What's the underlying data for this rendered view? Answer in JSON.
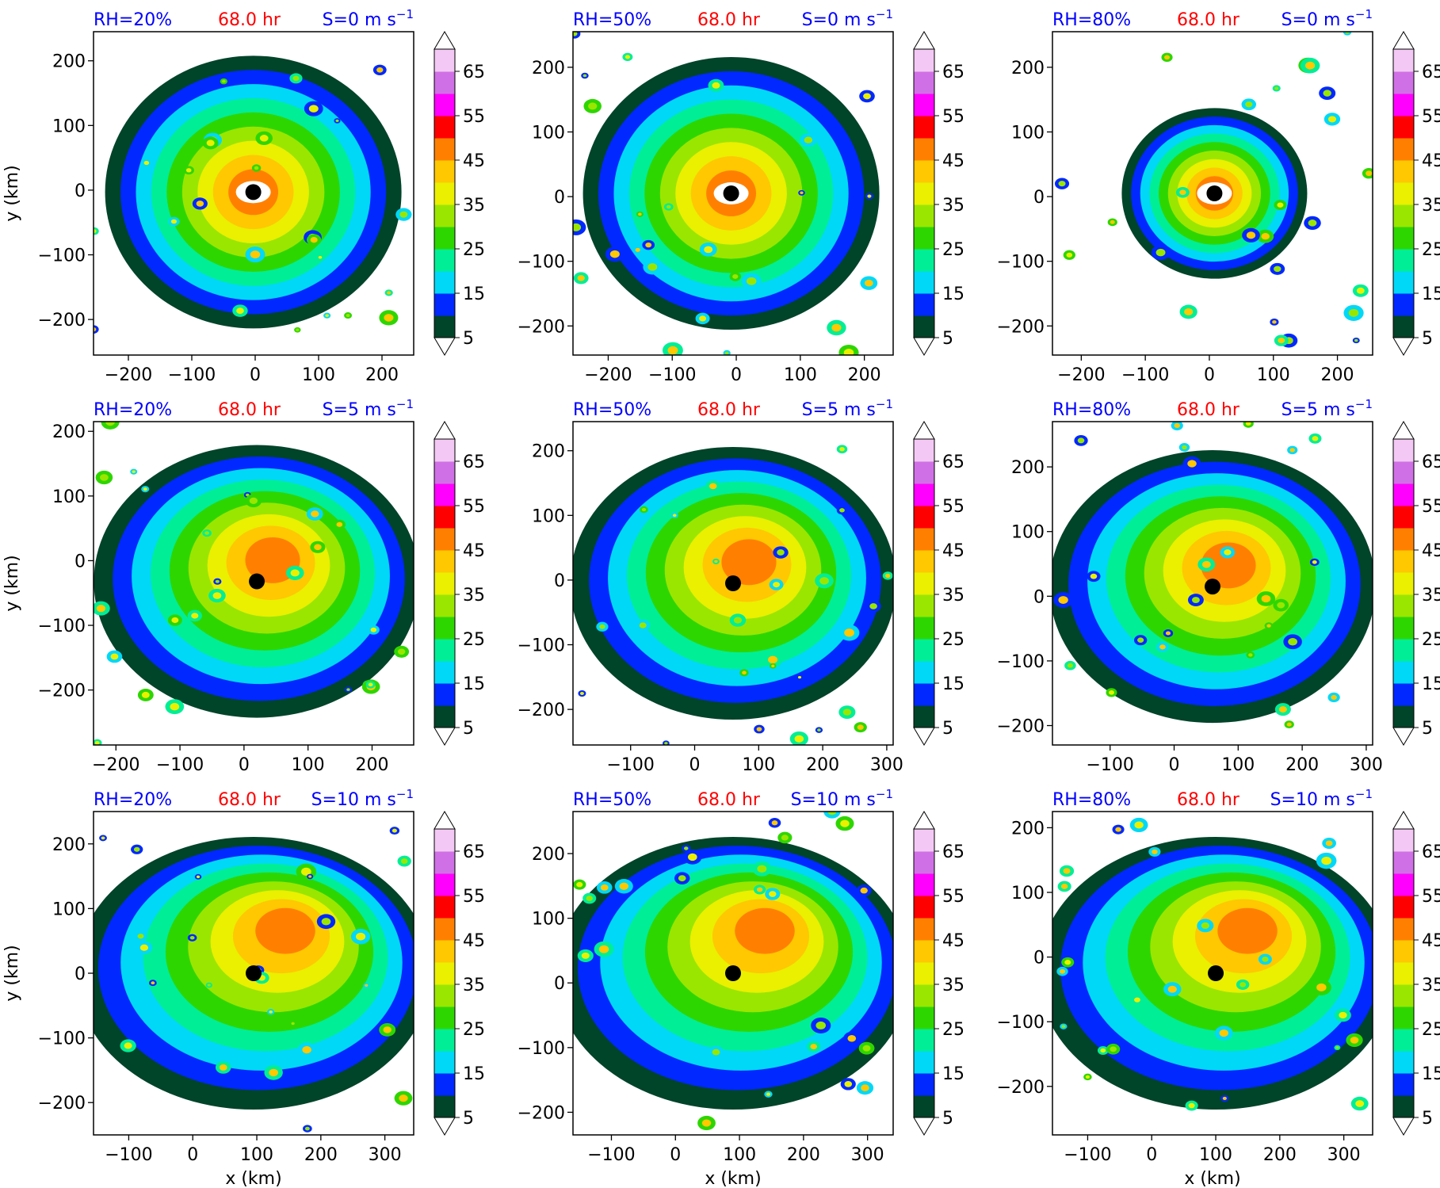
{
  "colors": {
    "rh": "#0000ff",
    "time": "#ff0000",
    "shear": "#0000ff",
    "levels": [
      "#00442a",
      "#0028ff",
      "#00d8f8",
      "#00ee96",
      "#2ed600",
      "#9ae600",
      "#eaf000",
      "#ffc800",
      "#ff8000",
      "#ff0000",
      "#ff00ff",
      "#d070e6",
      "#f4c8f4"
    ]
  },
  "colorbar_ticks": [
    "5",
    "15",
    "25",
    "35",
    "45",
    "55",
    "65"
  ],
  "chart_data": [
    {
      "type": "heatmap",
      "title_left": "RH=20%",
      "title_center": "68.0 hr",
      "shear": "0",
      "ylabel": "y (km)",
      "xlabel": "",
      "xlim": [
        -255,
        250
      ],
      "ylim": [
        -255,
        245
      ],
      "xticks": [
        -200,
        -100,
        0,
        100,
        200
      ],
      "yticks": [
        -200,
        -100,
        0,
        100,
        200
      ],
      "center": [
        -3,
        -3
      ],
      "colorbar_ticks": [
        5,
        15,
        25,
        35,
        45,
        55,
        65
      ]
    },
    {
      "type": "heatmap",
      "title_left": "RH=50%",
      "title_center": "68.0 hr",
      "shear": "0",
      "ylabel": "",
      "xlabel": "",
      "xlim": [
        -255,
        245
      ],
      "ylim": [
        -245,
        255
      ],
      "xticks": [
        -200,
        -100,
        0,
        100,
        200
      ],
      "yticks": [
        -200,
        -100,
        0,
        100,
        200
      ],
      "center": [
        -8,
        5
      ],
      "colorbar_ticks": [
        5,
        15,
        25,
        35,
        45,
        55,
        65
      ]
    },
    {
      "type": "heatmap",
      "title_left": "RH=80%",
      "title_center": "68.0 hr",
      "shear": "0",
      "ylabel": "",
      "xlabel": "",
      "xlim": [
        -245,
        255
      ],
      "ylim": [
        -245,
        255
      ],
      "xticks": [
        -200,
        -100,
        0,
        100,
        200
      ],
      "yticks": [
        -200,
        -100,
        0,
        100,
        200
      ],
      "center": [
        8,
        5
      ],
      "colorbar_ticks": [
        5,
        15,
        25,
        35,
        45,
        55,
        65
      ]
    },
    {
      "type": "heatmap",
      "title_left": "RH=20%",
      "title_center": "68.0 hr",
      "shear": "5",
      "ylabel": "y (km)",
      "xlabel": "",
      "xlim": [
        -235,
        265
      ],
      "ylim": [
        -285,
        215
      ],
      "xticks": [
        -200,
        -100,
        0,
        100,
        200
      ],
      "yticks": [
        -200,
        -100,
        0,
        100,
        200
      ],
      "center": [
        20,
        -32
      ],
      "colorbar_ticks": [
        5,
        15,
        25,
        35,
        45,
        55,
        65
      ]
    },
    {
      "type": "heatmap",
      "title_left": "RH=50%",
      "title_center": "68.0 hr",
      "shear": "5",
      "ylabel": "",
      "xlabel": "",
      "xlim": [
        -190,
        310
      ],
      "ylim": [
        -255,
        245
      ],
      "xticks": [
        -100,
        0,
        100,
        200,
        300
      ],
      "yticks": [
        -200,
        -100,
        0,
        100,
        200
      ],
      "center": [
        60,
        -5
      ],
      "colorbar_ticks": [
        5,
        15,
        25,
        35,
        45,
        55,
        65
      ]
    },
    {
      "type": "heatmap",
      "title_left": "RH=80%",
      "title_center": "68.0 hr",
      "shear": "5",
      "ylabel": "",
      "xlabel": "",
      "xlim": [
        -190,
        310
      ],
      "ylim": [
        -230,
        270
      ],
      "xticks": [
        -100,
        0,
        100,
        200,
        300
      ],
      "yticks": [
        -200,
        -100,
        0,
        100,
        200
      ],
      "center": [
        60,
        15
      ],
      "colorbar_ticks": [
        5,
        15,
        25,
        35,
        45,
        55,
        65
      ]
    },
    {
      "type": "heatmap",
      "title_left": "RH=20%",
      "title_center": "68.0 hr",
      "shear": "10",
      "ylabel": "y (km)",
      "xlabel": "x (km)",
      "xlim": [
        -155,
        345
      ],
      "ylim": [
        -250,
        250
      ],
      "xticks": [
        -100,
        0,
        100,
        200,
        300
      ],
      "yticks": [
        -200,
        -100,
        0,
        100,
        200
      ],
      "center": [
        95,
        0
      ],
      "colorbar_ticks": [
        5,
        15,
        25,
        35,
        45,
        55,
        65
      ]
    },
    {
      "type": "heatmap",
      "title_left": "RH=50%",
      "title_center": "68.0 hr",
      "shear": "10",
      "ylabel": "",
      "xlabel": "x (km)",
      "xlim": [
        -160,
        340
      ],
      "ylim": [
        -235,
        265
      ],
      "xticks": [
        -100,
        0,
        100,
        200,
        300
      ],
      "yticks": [
        -200,
        -100,
        0,
        100,
        200
      ],
      "center": [
        90,
        15
      ],
      "colorbar_ticks": [
        5,
        15,
        25,
        35,
        45,
        55,
        65
      ]
    },
    {
      "type": "heatmap",
      "title_left": "RH=80%",
      "title_center": "68.0 hr",
      "shear": "10",
      "ylabel": "",
      "xlabel": "x (km)",
      "xlim": [
        -155,
        345
      ],
      "ylim": [
        -275,
        225
      ],
      "xticks": [
        -100,
        0,
        100,
        200,
        300
      ],
      "yticks": [
        -200,
        -100,
        0,
        100,
        200
      ],
      "center": [
        100,
        -25
      ],
      "colorbar_ticks": [
        5,
        15,
        25,
        35,
        45,
        55,
        65
      ]
    }
  ]
}
